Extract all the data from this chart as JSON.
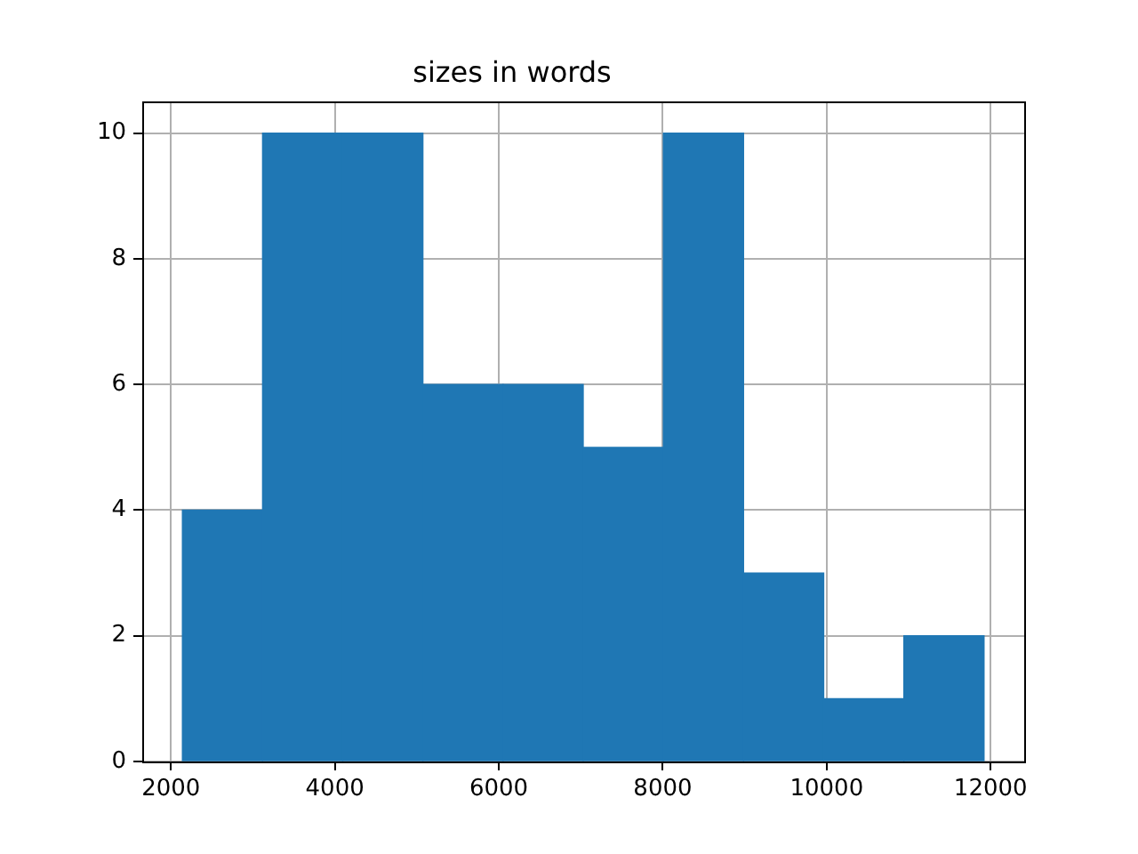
{
  "chart_data": {
    "type": "histogram",
    "title": "sizes in words",
    "bins": [
      2140,
      3118,
      4096,
      5074,
      6052,
      7030,
      8008,
      8986,
      9964,
      10942,
      11920
    ],
    "values": [
      4,
      10,
      10,
      6,
      6,
      5,
      10,
      3,
      1,
      2
    ],
    "color": "#1f77b4",
    "xlim": [
      1650,
      12410
    ],
    "xticks": [
      2000,
      4000,
      6000,
      8000,
      10000,
      12000
    ],
    "ylim": [
      0,
      10.5
    ],
    "yticks": [
      0,
      2,
      4,
      6,
      8,
      10
    ],
    "grid": true
  }
}
